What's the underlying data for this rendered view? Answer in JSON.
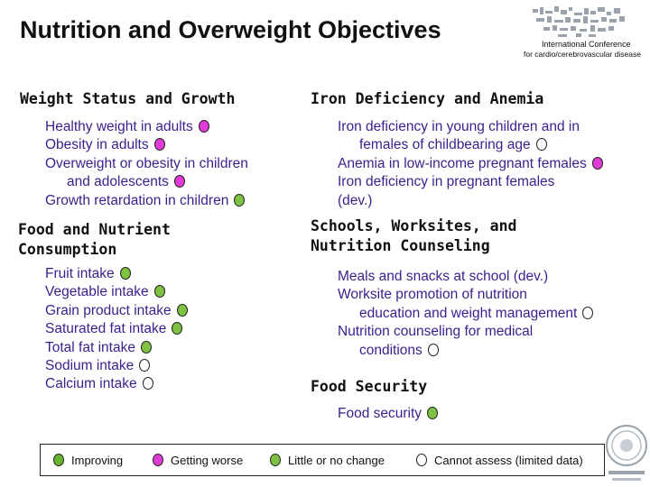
{
  "title": "Nutrition and Overweight Objectives",
  "conference": {
    "line1": "International Conference",
    "line2": "for cardio/cerebrovascular disease"
  },
  "status_colors": {
    "improving": "#66b32e",
    "getting_worse": "#e23bd5",
    "little_or_no_change": "#7fc242",
    "cannot_assess": "#ffffff"
  },
  "sections": {
    "weight": {
      "heading": "Weight Status and Growth",
      "items": [
        {
          "lines": [
            "Healthy weight in adults"
          ],
          "status": "worse"
        },
        {
          "lines": [
            "Obesity in adults"
          ],
          "status": "worse"
        },
        {
          "lines": [
            "Overweight or obesity in children",
            "and adolescents"
          ],
          "status": "worse"
        },
        {
          "lines": [
            "Growth retardation in children"
          ],
          "status": "nochange"
        }
      ]
    },
    "food": {
      "heading_line1": "Food and Nutrient",
      "heading_line2": "Consumption",
      "items": [
        {
          "lines": [
            "Fruit intake"
          ],
          "status": "nochange"
        },
        {
          "lines": [
            "Vegetable intake"
          ],
          "status": "nochange"
        },
        {
          "lines": [
            "Grain product intake"
          ],
          "status": "nochange"
        },
        {
          "lines": [
            "Saturated fat intake"
          ],
          "status": "nochange"
        },
        {
          "lines": [
            "Total fat intake"
          ],
          "status": "nochange"
        },
        {
          "lines": [
            "Sodium intake"
          ],
          "status": "cannot"
        },
        {
          "lines": [
            "Calcium intake"
          ],
          "status": "cannot"
        }
      ]
    },
    "iron": {
      "heading": "Iron Deficiency and Anemia",
      "items": [
        {
          "lines": [
            "Iron deficiency in young children and in",
            "females of childbearing age"
          ],
          "status": "cannot"
        },
        {
          "lines": [
            "Anemia in low-income pregnant females"
          ],
          "status": "worse"
        },
        {
          "lines": [
            "Iron deficiency in pregnant females",
            "(dev.)"
          ],
          "status": null
        }
      ]
    },
    "schools": {
      "heading_line1": "Schools, Worksites, and",
      "heading_line2": "Nutrition Counseling",
      "items": [
        {
          "lines": [
            "Meals and snacks at school (dev.)"
          ],
          "status": null
        },
        {
          "lines": [
            "Worksite promotion of nutrition",
            "education and weight management"
          ],
          "status": "cannot"
        },
        {
          "lines": [
            "Nutrition counseling for medical",
            "conditions"
          ],
          "status": "cannot"
        }
      ]
    },
    "security": {
      "heading": "Food Security",
      "items": [
        {
          "lines": [
            "Food security"
          ],
          "status": "nochange"
        }
      ]
    }
  },
  "legend": {
    "improving": "Improving",
    "getting_worse": "Getting worse",
    "little_or_no_change": "Little or no change",
    "cannot_assess": "Cannot assess (limited data)"
  }
}
